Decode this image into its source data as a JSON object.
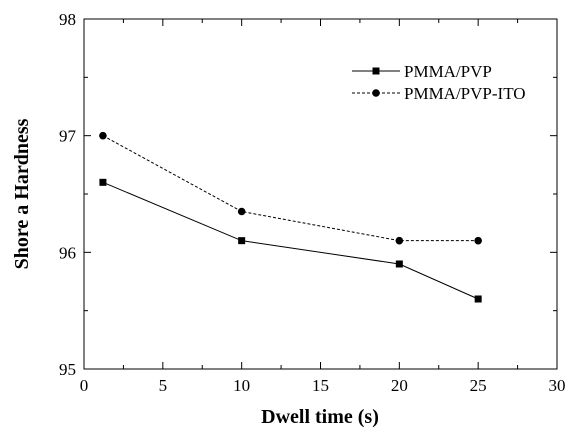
{
  "chart_data": {
    "type": "line",
    "xlabel": "Dwell time (s)",
    "ylabel": "Shore a Hardness",
    "xlim": [
      0,
      30
    ],
    "ylim": [
      95,
      98
    ],
    "xticks": [
      0,
      5,
      10,
      15,
      20,
      25,
      30
    ],
    "yticks": [
      95,
      96,
      97,
      98
    ],
    "grid": false,
    "legend_position": "top-right",
    "series": [
      {
        "name": "PMMA/PVP",
        "marker": "square",
        "line_style": "solid",
        "x": [
          1.2,
          10,
          20,
          25
        ],
        "y": [
          96.6,
          96.1,
          95.9,
          95.6
        ]
      },
      {
        "name": "PMMA/PVP-ITO",
        "marker": "circle",
        "line_style": "dashed",
        "x": [
          1.2,
          10,
          20,
          25
        ],
        "y": [
          97.0,
          96.35,
          96.1,
          96.1
        ]
      }
    ]
  }
}
